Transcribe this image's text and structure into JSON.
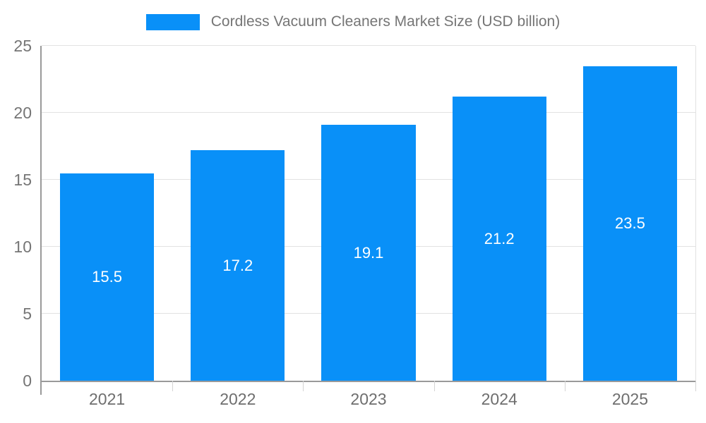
{
  "chart_data": {
    "type": "bar",
    "title": "Cordless Vacuum Cleaners Market Size (USD billion)",
    "legend": [
      "Cordless Vacuum Cleaners Market Size (USD billion)"
    ],
    "legend_position": "top",
    "categories": [
      "2021",
      "2022",
      "2023",
      "2024",
      "2025"
    ],
    "values": [
      15.5,
      17.2,
      19.1,
      21.2,
      23.5
    ],
    "xlabel": "",
    "ylabel": "",
    "ylim": [
      0,
      25
    ],
    "yticks": [
      0,
      5,
      10,
      15,
      20,
      25
    ],
    "grid": true,
    "colors": {
      "bar": "#0990f8",
      "bar_label": "#ffffff",
      "axis": "#9a9a9a",
      "gridline": "#e2e2e2",
      "tick_label": "#757575",
      "x_label": "#6e6e6e",
      "legend_text": "#757575",
      "background": "#ffffff"
    }
  }
}
